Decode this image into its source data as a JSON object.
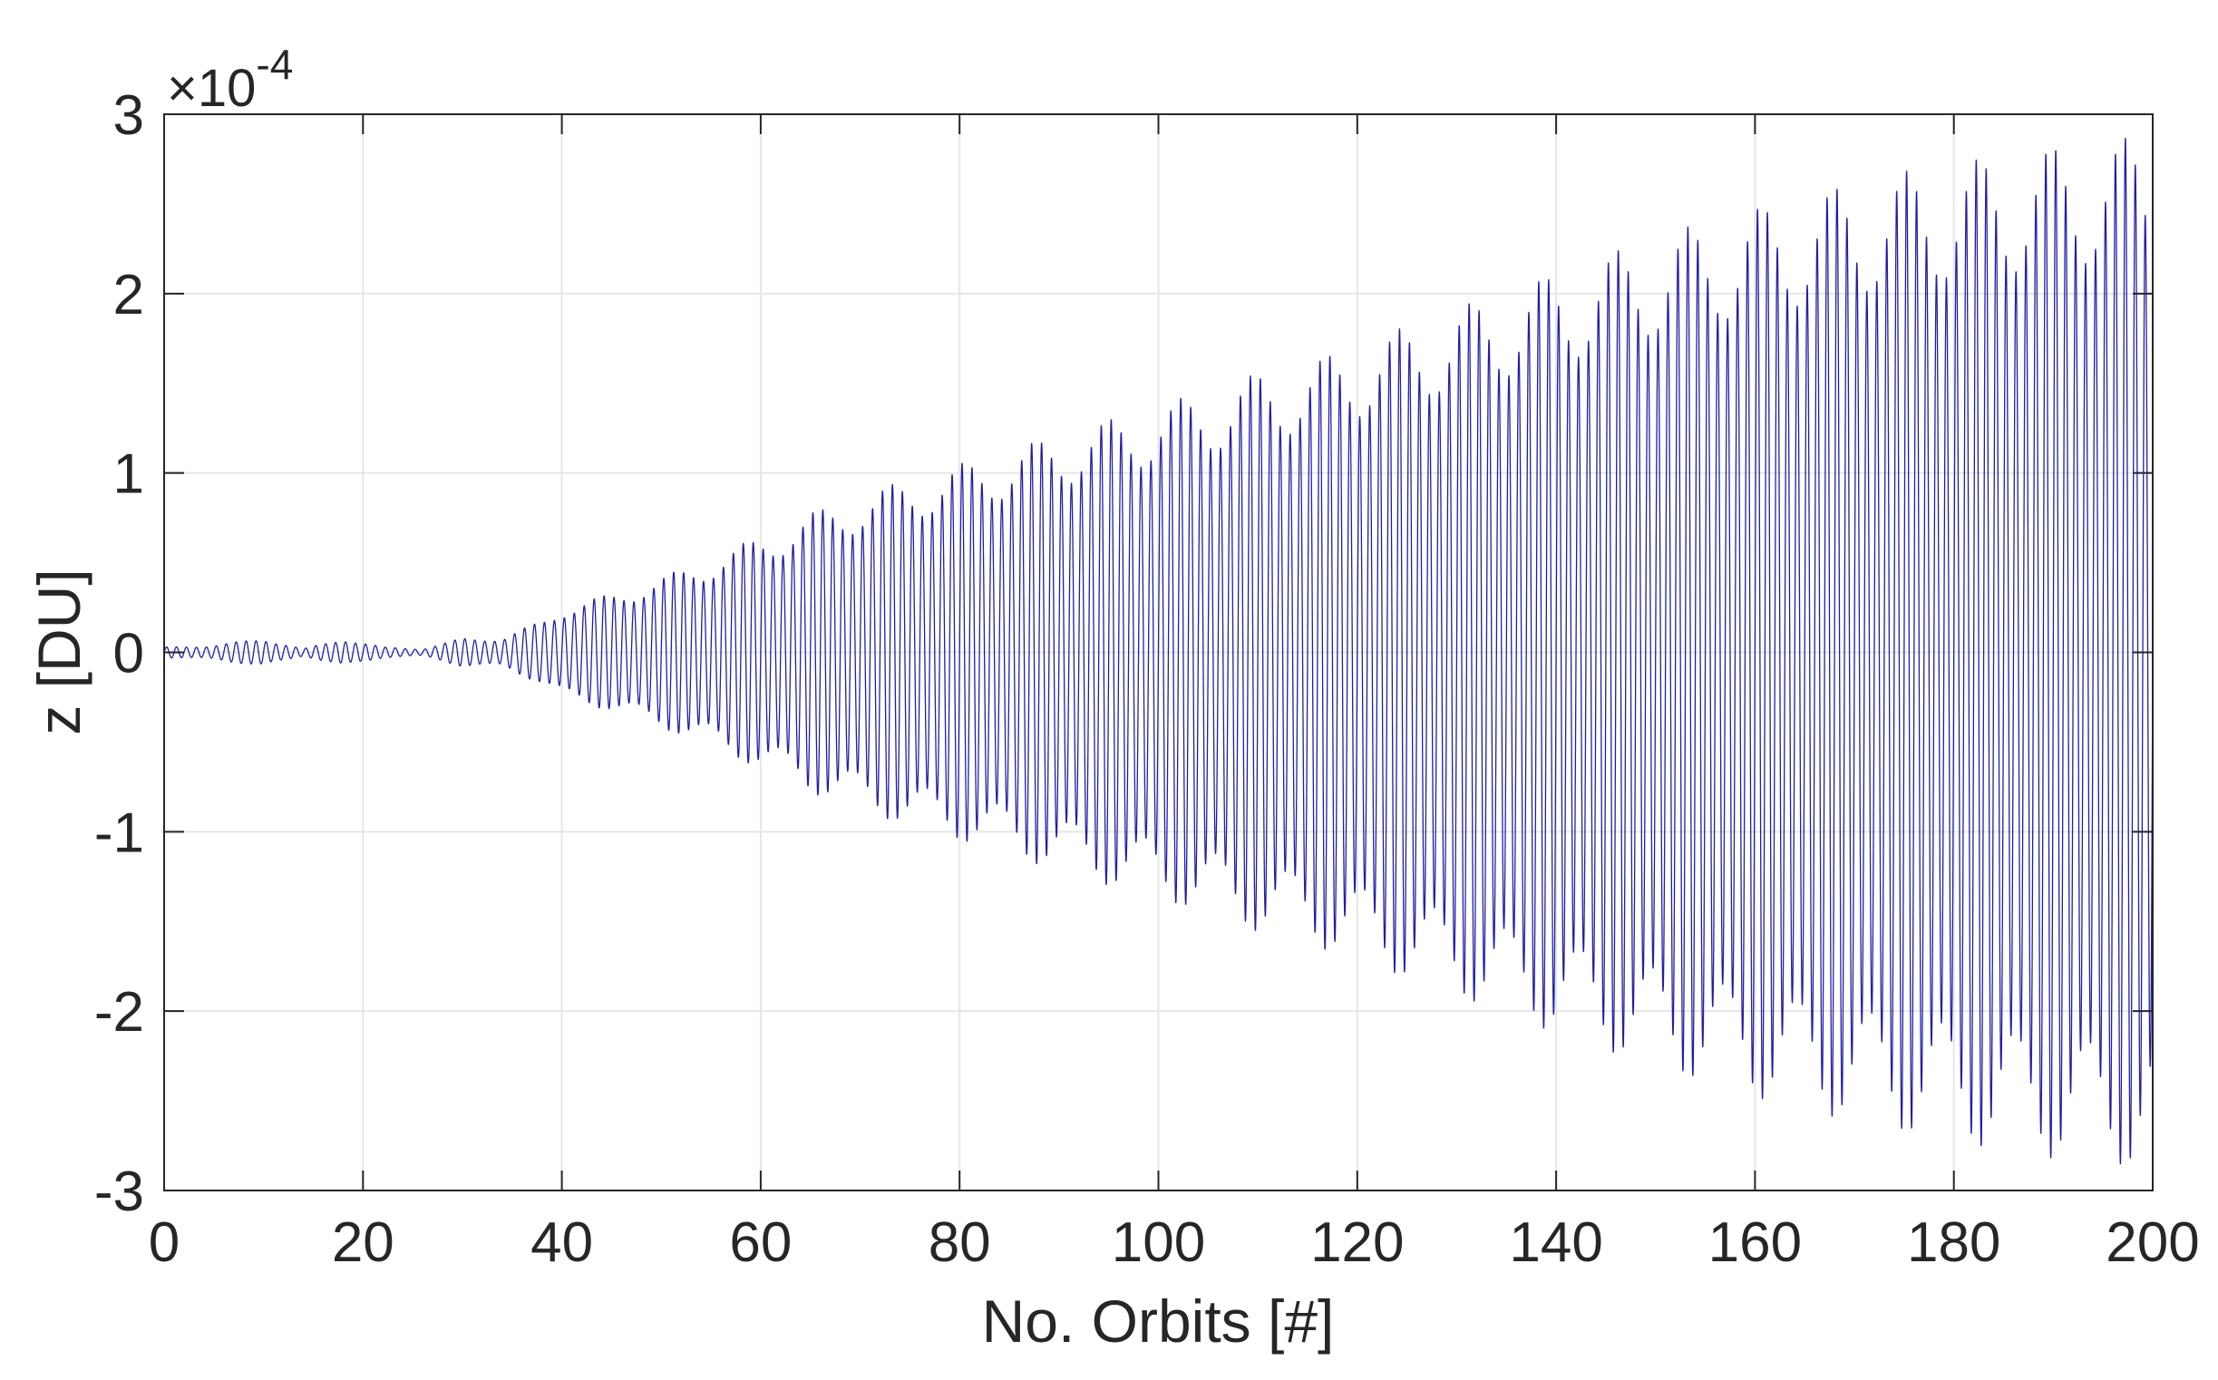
{
  "chart_data": {
    "type": "line",
    "title": "",
    "xlabel": "No. Orbits [#]",
    "ylabel": "z [DU]",
    "y_multiplier": {
      "base": "×10",
      "exponent": "-4"
    },
    "xlim": [
      0,
      200
    ],
    "ylim": [
      -3,
      3
    ],
    "x_ticks": [
      0,
      20,
      40,
      60,
      80,
      100,
      120,
      140,
      160,
      180,
      200
    ],
    "x_tick_labels": [
      "0",
      "20",
      "40",
      "60",
      "80",
      "100",
      "120",
      "140",
      "160",
      "180",
      "200"
    ],
    "y_ticks": [
      3,
      2,
      1,
      0,
      -1,
      -2,
      -3
    ],
    "y_tick_labels": [
      "3",
      "2",
      "1",
      "0",
      "-1",
      "-2",
      "-3"
    ],
    "grid": true,
    "series": [
      {
        "name": "z",
        "color": "#1f1fa8",
        "style": "oscillation",
        "oscillations_per_orbit": 1,
        "envelope_x": [
          0,
          5,
          10,
          14,
          18,
          22,
          26,
          30,
          34,
          38,
          40,
          45,
          50,
          55,
          60,
          65,
          70,
          75,
          80,
          85,
          90,
          95,
          100,
          105,
          110,
          115,
          120,
          125,
          130,
          135,
          140,
          145,
          150,
          155,
          160,
          165,
          170,
          175,
          180,
          185,
          190,
          195,
          200
        ],
        "envelope_y": [
          0.03,
          0.04,
          0.08,
          0.02,
          0.08,
          0.03,
          0.02,
          0.08,
          0.08,
          0.18,
          0.25,
          0.33,
          0.42,
          0.53,
          0.65,
          0.78,
          0.88,
          0.97,
          1.05,
          1.13,
          1.22,
          1.3,
          1.38,
          1.46,
          1.56,
          1.62,
          1.72,
          1.82,
          1.92,
          2.02,
          2.12,
          2.22,
          2.32,
          2.4,
          2.48,
          2.55,
          2.62,
          2.68,
          2.73,
          2.78,
          2.82,
          2.86,
          2.88
        ]
      }
    ]
  }
}
